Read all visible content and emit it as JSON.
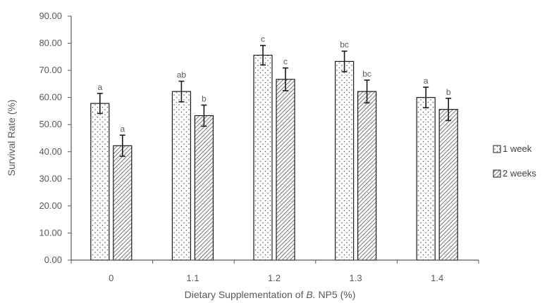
{
  "chart_data": {
    "type": "bar",
    "title": "",
    "xlabel_prefix": "Dietary Supplementation of ",
    "xlabel_italic": "B.",
    "xlabel_suffix": " NP5 (%)",
    "ylabel": "Survival Rate (%)",
    "ylim": [
      0,
      90
    ],
    "ytick_step": 10,
    "ytick_decimals": 2,
    "grid": false,
    "legend_position": "right",
    "categories": [
      "0",
      "1.1",
      "1.2",
      "1.3",
      "1.4"
    ],
    "series": [
      {
        "name": "1 week",
        "pattern": "dots",
        "values": [
          57.8,
          62.2,
          75.6,
          73.3,
          60.0
        ],
        "errors": [
          3.7,
          3.8,
          3.6,
          3.8,
          3.8
        ],
        "labels": [
          "a",
          "ab",
          "c",
          "bc",
          "a"
        ]
      },
      {
        "name": "2 weeks",
        "pattern": "hatch",
        "values": [
          42.2,
          53.3,
          66.7,
          62.2,
          55.6
        ],
        "errors": [
          3.9,
          3.9,
          4.2,
          4.2,
          4.1
        ],
        "labels": [
          "a",
          "b",
          "c",
          "bc",
          "b"
        ]
      }
    ]
  },
  "colors": {
    "axis": "#595959",
    "bar_stroke": "#1a1a1a",
    "pattern": "#555555",
    "error_bar": "#1a1a1a"
  }
}
